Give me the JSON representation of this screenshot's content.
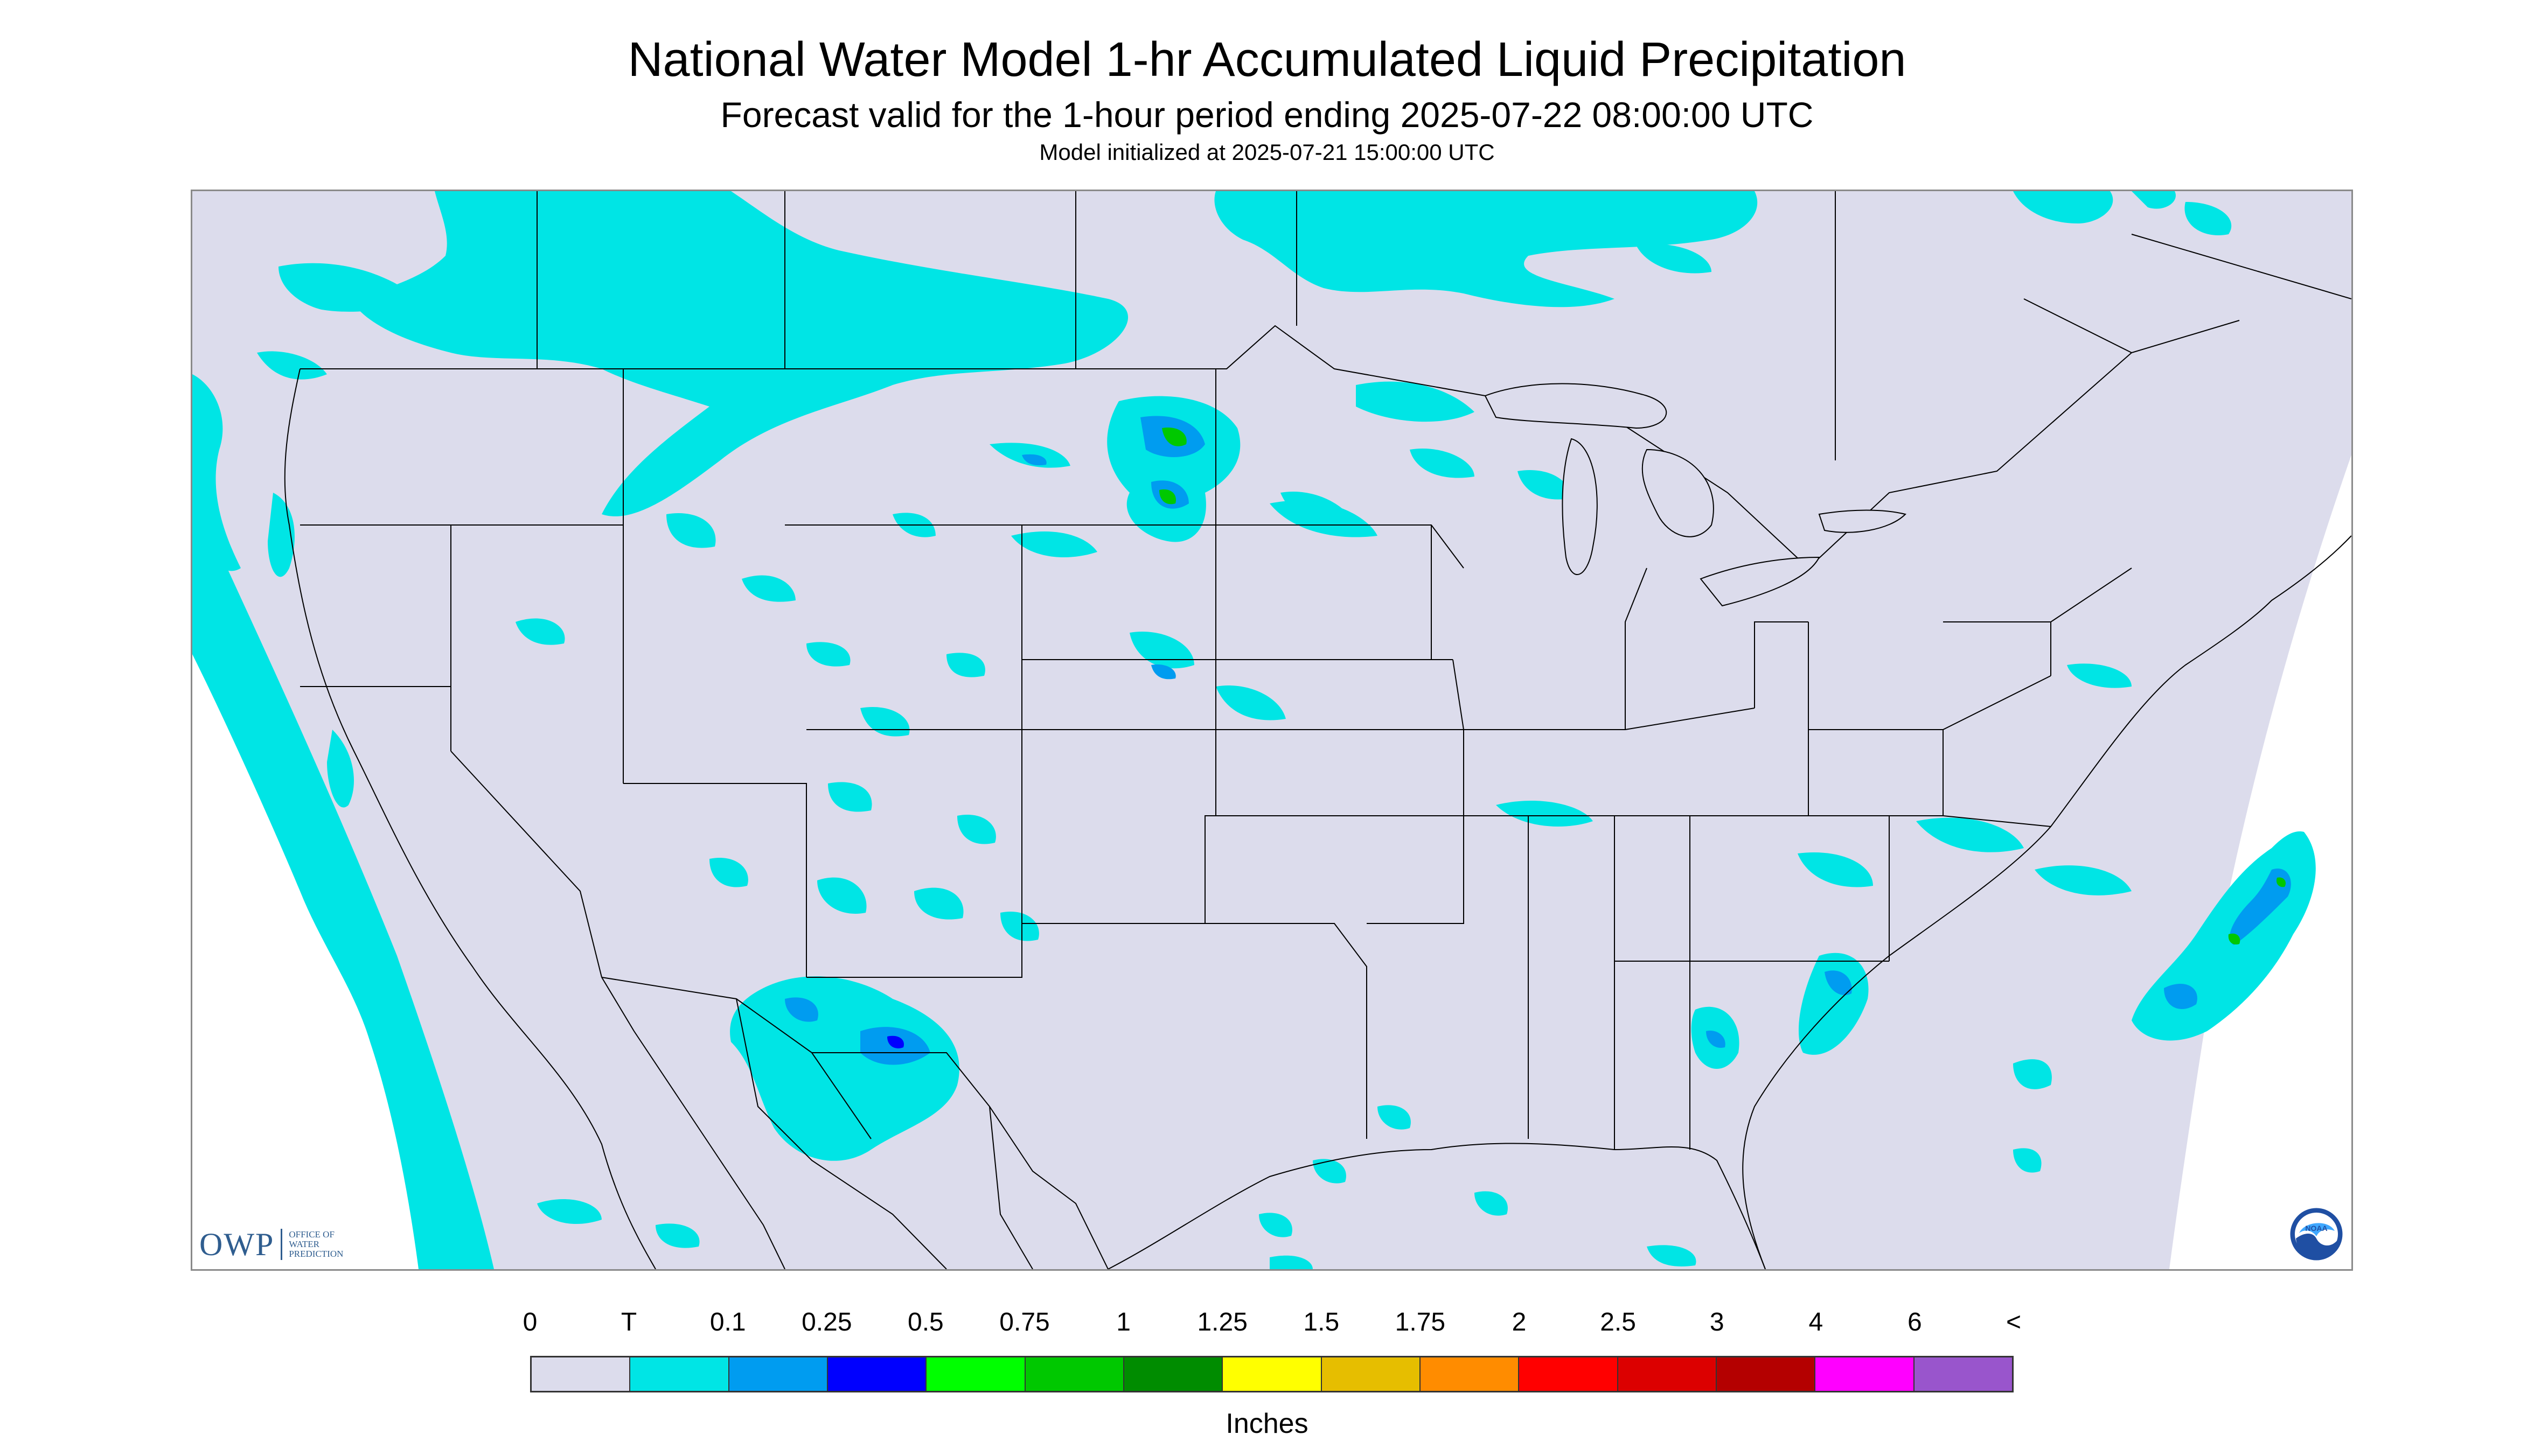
{
  "header": {
    "title": "National Water Model 1-hr Accumulated Liquid Precipitation",
    "subtitle": "Forecast valid for the 1-hour period ending 2025-07-22 08:00:00 UTC",
    "init_line": "Model initialized at 2025-07-21 15:00:00 UTC"
  },
  "map": {
    "background_color": "#dcdcec",
    "outside_domain_color": "#ffffff",
    "boundary_color": "#000000",
    "precip_regions": [
      {
        "name": "northwest-canada-band",
        "level": "T"
      },
      {
        "name": "pacific-coast-band",
        "level": "T"
      },
      {
        "name": "northern-plains-cells",
        "level": "0.5"
      },
      {
        "name": "desert-southwest-cells",
        "level": "0.25"
      },
      {
        "name": "southeast-coast-cells",
        "level": "0.75"
      },
      {
        "name": "atlantic-offshore-band",
        "level": "0.75"
      }
    ]
  },
  "logos": {
    "owp_mark": "OWP",
    "owp_text_lines": [
      "OFFICE OF",
      "WATER",
      "PREDICTION"
    ],
    "noaa_text": "NOAA"
  },
  "legend": {
    "tick_labels": [
      "0",
      "T",
      "0.1",
      "0.25",
      "0.5",
      "0.75",
      "1",
      "1.25",
      "1.5",
      "1.75",
      "2",
      "2.5",
      "3",
      "4",
      "6",
      "<"
    ],
    "colors": [
      "#dcdcec",
      "#00e5e5",
      "#009cf0",
      "#0000ff",
      "#00ff00",
      "#00c800",
      "#008c00",
      "#ffff00",
      "#e6be00",
      "#ff8c00",
      "#ff0000",
      "#dc0000",
      "#b40000",
      "#ff00ff",
      "#9955cc"
    ],
    "units_label": "Inches"
  }
}
